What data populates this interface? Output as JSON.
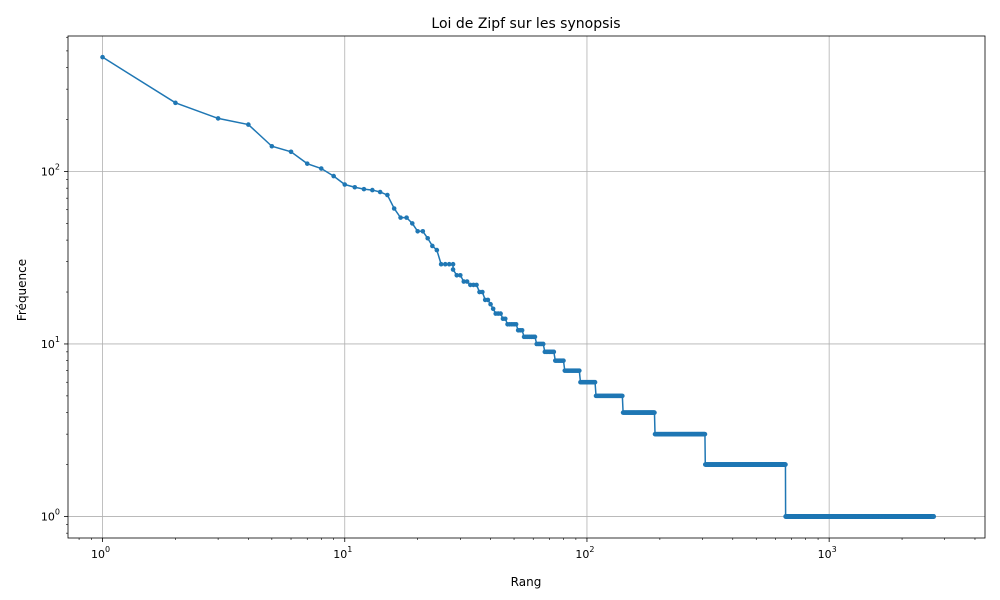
{
  "chart_data": {
    "type": "line",
    "title": "Loi de Zipf sur les synopsis",
    "xlabel": "Rang",
    "ylabel": "Fréquence",
    "x_scale": "log",
    "y_scale": "log",
    "xlim": [
      0.72,
      4400
    ],
    "ylim": [
      0.75,
      610
    ],
    "grid": true,
    "color": "#1f77b4",
    "x_ticks": [
      {
        "value": 1,
        "base": "10",
        "exp": "0"
      },
      {
        "value": 10,
        "base": "10",
        "exp": "1"
      },
      {
        "value": 100,
        "base": "10",
        "exp": "2"
      },
      {
        "value": 1000,
        "base": "10",
        "exp": "3"
      }
    ],
    "y_ticks": [
      {
        "value": 1,
        "base": "10",
        "exp": "0"
      },
      {
        "value": 10,
        "base": "10",
        "exp": "1"
      },
      {
        "value": 100,
        "base": "10",
        "exp": "2"
      }
    ],
    "head_points": [
      [
        1,
        460
      ],
      [
        2,
        250
      ],
      [
        3,
        203
      ],
      [
        4,
        187
      ],
      [
        5,
        140
      ],
      [
        6,
        130
      ],
      [
        7,
        111
      ],
      [
        8,
        104
      ],
      [
        9,
        94
      ],
      [
        10,
        84
      ],
      [
        11,
        81
      ],
      [
        12,
        79
      ],
      [
        13,
        78
      ],
      [
        14,
        76
      ],
      [
        15,
        73
      ],
      [
        16,
        61
      ],
      [
        17,
        54
      ],
      [
        18,
        54
      ],
      [
        19,
        50
      ],
      [
        20,
        45
      ],
      [
        21,
        45
      ],
      [
        22,
        41
      ],
      [
        23,
        37
      ],
      [
        24,
        35
      ]
    ],
    "plateaus": [
      {
        "y": 29,
        "from": 25,
        "to": 28
      },
      {
        "y": 27,
        "from": 28,
        "to": 28
      },
      {
        "y": 25,
        "from": 29,
        "to": 30
      },
      {
        "y": 23,
        "from": 31,
        "to": 32
      },
      {
        "y": 22,
        "from": 33,
        "to": 35
      },
      {
        "y": 20,
        "from": 36,
        "to": 37
      },
      {
        "y": 18,
        "from": 38,
        "to": 39
      },
      {
        "y": 17,
        "from": 40,
        "to": 40
      },
      {
        "y": 16,
        "from": 41,
        "to": 41
      },
      {
        "y": 15,
        "from": 42,
        "to": 44
      },
      {
        "y": 14,
        "from": 45,
        "to": 46
      },
      {
        "y": 13,
        "from": 47,
        "to": 51
      },
      {
        "y": 12,
        "from": 52,
        "to": 54
      },
      {
        "y": 11,
        "from": 55,
        "to": 61
      },
      {
        "y": 10,
        "from": 62,
        "to": 66
      },
      {
        "y": 9,
        "from": 67,
        "to": 73
      },
      {
        "y": 8,
        "from": 74,
        "to": 80
      },
      {
        "y": 7,
        "from": 81,
        "to": 93
      },
      {
        "y": 6,
        "from": 94,
        "to": 108
      },
      {
        "y": 5,
        "from": 109,
        "to": 140
      },
      {
        "y": 4,
        "from": 141,
        "to": 190
      },
      {
        "y": 3,
        "from": 191,
        "to": 307
      },
      {
        "y": 2,
        "from": 308,
        "to": 660
      },
      {
        "y": 1,
        "from": 661,
        "to": 2700
      }
    ]
  }
}
